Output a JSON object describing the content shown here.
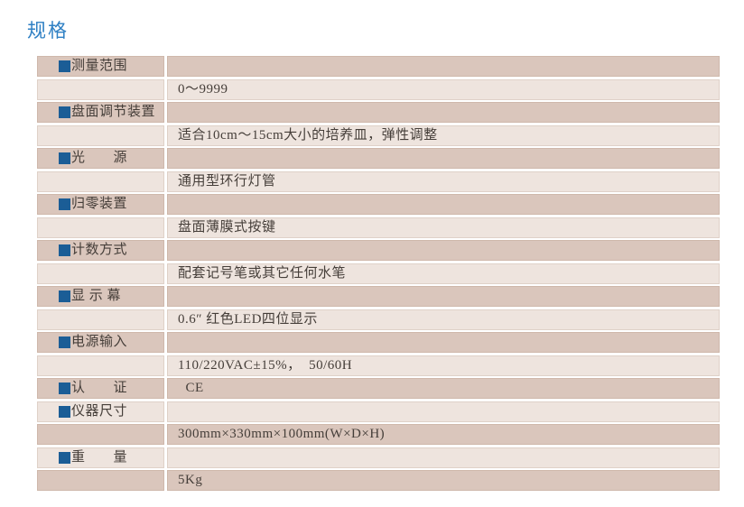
{
  "page": {
    "title": "规格"
  },
  "colors": {
    "title_blue": "#2f80c4",
    "bullet_blue": "#1b5d96",
    "row_dark": "#dac6bc",
    "row_light": "#eee4de",
    "text": "#453e39"
  },
  "table": {
    "rows": [
      {
        "label": "测量范围",
        "value": ""
      },
      {
        "label": "",
        "value": "0～9999"
      },
      {
        "label": "盘面调节装置",
        "value": ""
      },
      {
        "label": "",
        "value": "适合10cm～15cm大小的培养皿，弹性调整"
      },
      {
        "label": "光　　源",
        "value": ""
      },
      {
        "label": "",
        "value": "通用型环行灯管"
      },
      {
        "label": "归零装置",
        "value": ""
      },
      {
        "label": "",
        "value": "盘面薄膜式按键"
      },
      {
        "label": "计数方式",
        "value": ""
      },
      {
        "label": "",
        "value": "配套记号笔或其它任何水笔"
      },
      {
        "label": "显 示 幕",
        "value": ""
      },
      {
        "label": "",
        "value": "0.6″ 红色LED四位显示"
      },
      {
        "label": "电源输入",
        "value": ""
      },
      {
        "label": "",
        "value": "110/220VAC±15%，  50/60H"
      },
      {
        "label": "认　　证",
        "value": "  CE"
      },
      {
        "label": "仪器尺寸",
        "value": ""
      },
      {
        "label": "",
        "value": "300mm×330mm×100mm(W×D×H)"
      },
      {
        "label": "重　　量",
        "value": ""
      },
      {
        "label": "",
        "value": "5Kg"
      }
    ]
  }
}
